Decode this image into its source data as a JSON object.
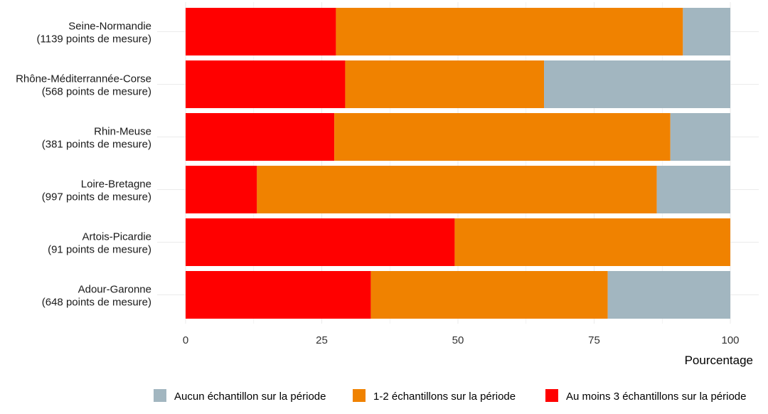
{
  "chart_data": {
    "type": "bar",
    "orientation": "horizontal",
    "stacked": true,
    "categories": [
      {
        "name": "Seine-Normandie",
        "sub": "(1139 points de mesure)"
      },
      {
        "name": "Rhône-Méditerrannée-Corse",
        "sub": "(568 points de mesure)"
      },
      {
        "name": "Rhin-Meuse",
        "sub": "(381 points de mesure)"
      },
      {
        "name": "Loire-Bretagne",
        "sub": "(997 points de mesure)"
      },
      {
        "name": "Artois-Picardie",
        "sub": "(91 points de mesure)"
      },
      {
        "name": "Adour-Garonne",
        "sub": "(648 points de mesure)"
      }
    ],
    "series": [
      {
        "name": "Au moins 3 échantillons sur la période",
        "color": "#FF0000",
        "values": [
          27.6,
          29.3,
          27.3,
          13.1,
          49.4,
          34.0
        ]
      },
      {
        "name": "1-2 échantillons sur la période",
        "color": "#F08200",
        "values": [
          63.7,
          36.5,
          61.7,
          73.4,
          50.6,
          43.5
        ]
      },
      {
        "name": "Aucun échantillon sur la période",
        "color": "#A2B6C0",
        "values": [
          8.7,
          34.2,
          11.0,
          13.5,
          0.0,
          22.5
        ]
      }
    ],
    "legend_order": [
      2,
      1,
      0
    ],
    "legend_position": "bottom",
    "xlabel": "Pourcentage",
    "xlim": [
      0,
      100
    ],
    "xticks": [
      0,
      25,
      50,
      75,
      100
    ],
    "grid": true
  }
}
